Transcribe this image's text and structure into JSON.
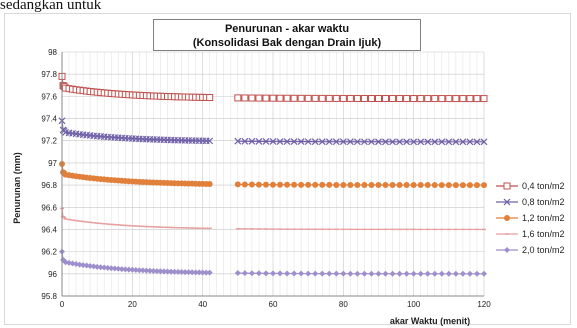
{
  "page": {
    "top_fragment": "sedangkan untuk"
  },
  "chart_data": {
    "type": "line",
    "title": "Penurunan - akar waktu",
    "subtitle": "(Konsolidasi  Bak dengan Drain Ijuk)",
    "xlabel": "akar Waktu (menit)",
    "ylabel": "Penurunan (mm)",
    "xlim": [
      0,
      120
    ],
    "ylim": [
      95.8,
      98
    ],
    "x_ticks": [
      "0",
      "20",
      "40",
      "60",
      "80",
      "100",
      "120"
    ],
    "y_ticks": [
      "95.8",
      "96",
      "96.2",
      "96.4",
      "96.6",
      "96.8",
      "97",
      "97.2",
      "97.4",
      "97.6",
      "97.8",
      "98"
    ],
    "grid": true,
    "legend_position": "right",
    "series": [
      {
        "name": "0,4 ton/m2",
        "color": "#c0504d",
        "marker": "square-open",
        "start": 97.78,
        "early": 97.68,
        "end": 97.58
      },
      {
        "name": "0,8 ton/m2",
        "color": "#7060a8",
        "marker": "x",
        "start": 97.38,
        "early": 97.28,
        "end": 97.19
      },
      {
        "name": "1,2 ton/m2",
        "color": "#e0803a",
        "marker": "circle",
        "start": 96.99,
        "early": 96.9,
        "end": 96.8
      },
      {
        "name": "1,6 ton/m2",
        "color": "#e8a0a0",
        "marker": "dash",
        "start": 96.59,
        "early": 96.5,
        "end": 96.4
      },
      {
        "name": "2,0 ton/m2",
        "color": "#9e8fcc",
        "marker": "diamond",
        "start": 96.2,
        "early": 96.11,
        "end": 96.0
      }
    ]
  }
}
